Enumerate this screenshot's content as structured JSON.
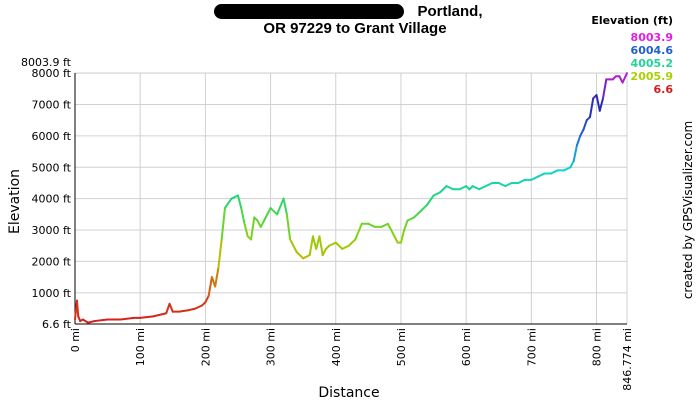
{
  "title": {
    "line1": "Portland,",
    "line2": "OR 97229 to Grant Village"
  },
  "credit": "created by GPSVisualizer.com",
  "legend": {
    "title": "Elevation (ft)",
    "items": [
      {
        "label": "8003.9",
        "color": "#e020e0"
      },
      {
        "label": "6004.6",
        "color": "#1f5fd0"
      },
      {
        "label": "4005.2",
        "color": "#22d49a"
      },
      {
        "label": "2005.9",
        "color": "#a8d000"
      },
      {
        "label": "6.6",
        "color": "#d21c1c"
      }
    ]
  },
  "chart_data": {
    "type": "line",
    "title": "Portland, OR 97229 to Grant Village",
    "xlabel": "Distance",
    "ylabel": "Elevation",
    "xlim": [
      0,
      846.774
    ],
    "ylim": [
      6.6,
      8003.9
    ],
    "x_unit": "mi",
    "y_unit": "ft",
    "grid": true,
    "legend_position": "top-right",
    "x_ticks": [
      "0 mi",
      "100 mi",
      "200 mi",
      "300 mi",
      "400 mi",
      "500 mi",
      "600 mi",
      "700 mi",
      "800 mi",
      "846.774 mi"
    ],
    "x_tick_values": [
      0,
      100,
      200,
      300,
      400,
      500,
      600,
      700,
      800,
      846.774
    ],
    "y_ticks": [
      "6.6 ft",
      "1000 ft",
      "2000 ft",
      "3000 ft",
      "4000 ft",
      "5000 ft",
      "6000 ft",
      "7000 ft",
      "8000 ft",
      "8003.9 ft"
    ],
    "y_tick_values": [
      6.6,
      1000,
      2000,
      3000,
      4000,
      5000,
      6000,
      7000,
      8000,
      8003.9
    ],
    "series": [
      {
        "x": [
          0,
          3,
          5,
          8,
          12,
          20,
          30,
          50,
          70,
          90,
          100,
          120,
          140,
          145,
          150,
          160,
          175,
          185,
          195,
          200,
          205,
          210,
          215,
          220,
          225,
          230,
          240,
          250,
          255,
          260,
          265,
          270,
          275,
          280,
          285,
          290,
          300,
          310,
          320,
          325,
          330,
          340,
          350,
          360,
          365,
          370,
          375,
          380,
          385,
          390,
          400,
          410,
          420,
          430,
          440,
          450,
          460,
          470,
          480,
          490,
          495,
          500,
          505,
          510,
          520,
          530,
          540,
          550,
          560,
          570,
          580,
          590,
          600,
          605,
          610,
          620,
          630,
          640,
          650,
          660,
          670,
          680,
          690,
          700,
          710,
          720,
          730,
          740,
          750,
          760,
          765,
          770,
          775,
          780,
          785,
          790,
          795,
          800,
          805,
          810,
          815,
          820,
          825,
          830,
          835,
          840,
          846.774
        ],
        "y": [
          150,
          750,
          250,
          100,
          150,
          50,
          100,
          150,
          150,
          200,
          200,
          250,
          350,
          650,
          400,
          400,
          450,
          500,
          600,
          700,
          900,
          1500,
          1200,
          1800,
          2700,
          3700,
          4000,
          4100,
          3700,
          3200,
          2800,
          2700,
          3400,
          3300,
          3100,
          3300,
          3700,
          3500,
          4000,
          3500,
          2700,
          2300,
          2100,
          2200,
          2800,
          2400,
          2800,
          2200,
          2400,
          2500,
          2600,
          2400,
          2500,
          2700,
          3200,
          3200,
          3100,
          3100,
          3200,
          2800,
          2600,
          2600,
          3000,
          3300,
          3400,
          3600,
          3800,
          4100,
          4200,
          4400,
          4300,
          4300,
          4400,
          4300,
          4400,
          4300,
          4400,
          4500,
          4500,
          4400,
          4500,
          4500,
          4600,
          4600,
          4700,
          4800,
          4800,
          4900,
          4900,
          5000,
          5200,
          5700,
          6000,
          6200,
          6500,
          6600,
          7200,
          7300,
          6800,
          7200,
          7800,
          7800,
          7800,
          7900,
          7900,
          7700,
          8000
        ]
      }
    ]
  }
}
